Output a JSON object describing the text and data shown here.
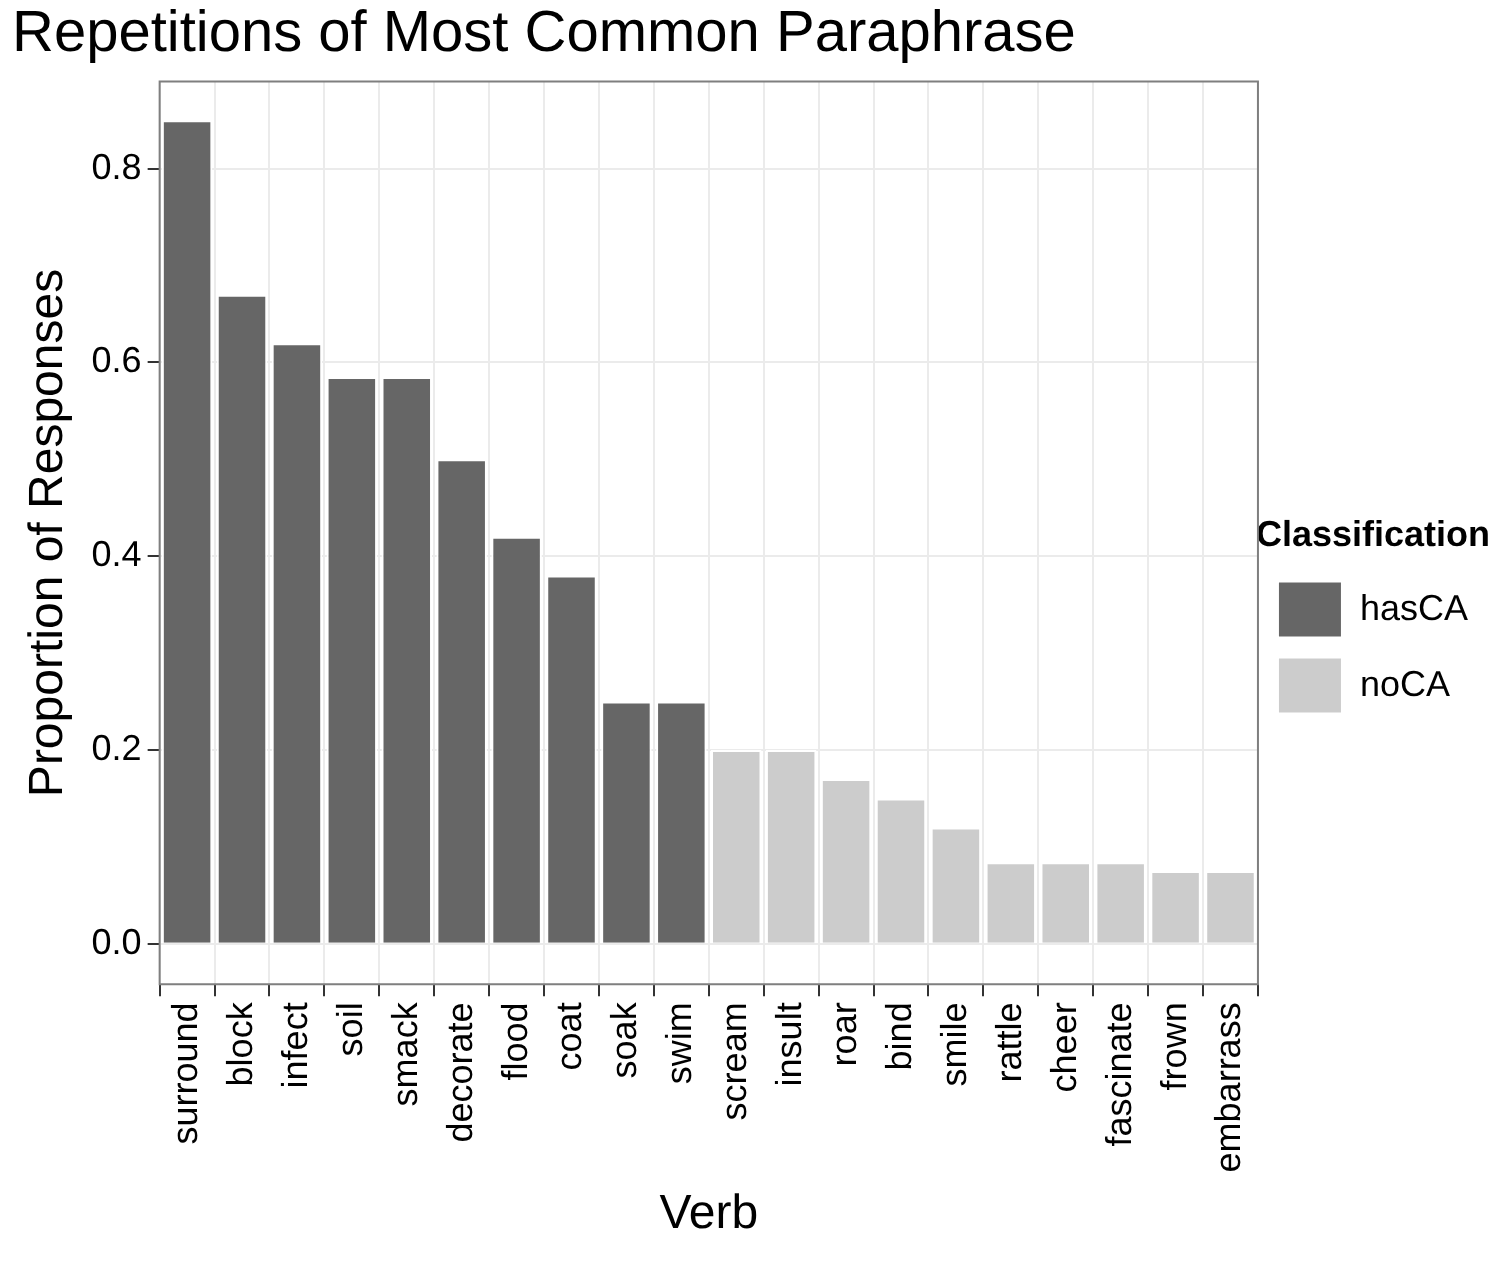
{
  "chart_data": {
    "type": "bar",
    "title": "Repetitions of Most Common Paraphrase",
    "xlabel": "Verb",
    "ylabel": "Proportion of Responses",
    "legend_title": "Classification",
    "categories": [
      "surround",
      "block",
      "infect",
      "soil",
      "smack",
      "decorate",
      "flood",
      "coat",
      "soak",
      "swim",
      "scream",
      "insult",
      "roar",
      "bind",
      "smile",
      "rattle",
      "cheer",
      "fascinate",
      "frown",
      "embarrass"
    ],
    "series": [
      {
        "name": "hasCA",
        "color": "#666666",
        "values": [
          0.85,
          0.67,
          0.62,
          0.585,
          0.585,
          0.5,
          0.42,
          0.38,
          0.25,
          0.25,
          null,
          null,
          null,
          null,
          null,
          null,
          null,
          null,
          null,
          null
        ]
      },
      {
        "name": "noCA",
        "color": "#cccccc",
        "values": [
          null,
          null,
          null,
          null,
          null,
          null,
          null,
          null,
          null,
          null,
          0.2,
          0.2,
          0.17,
          0.15,
          0.12,
          0.084,
          0.084,
          0.084,
          0.075,
          0.075
        ]
      }
    ],
    "ylim": [
      -0.042,
      0.89
    ],
    "yticks": [
      {
        "value": 0,
        "label": "0.0"
      },
      {
        "value": 0.2,
        "label": "0.2"
      },
      {
        "value": 0.4,
        "label": "0.4"
      },
      {
        "value": 0.6,
        "label": "0.6"
      },
      {
        "value": 0.8,
        "label": "0.8"
      }
    ],
    "grid": true,
    "legend": "right"
  }
}
